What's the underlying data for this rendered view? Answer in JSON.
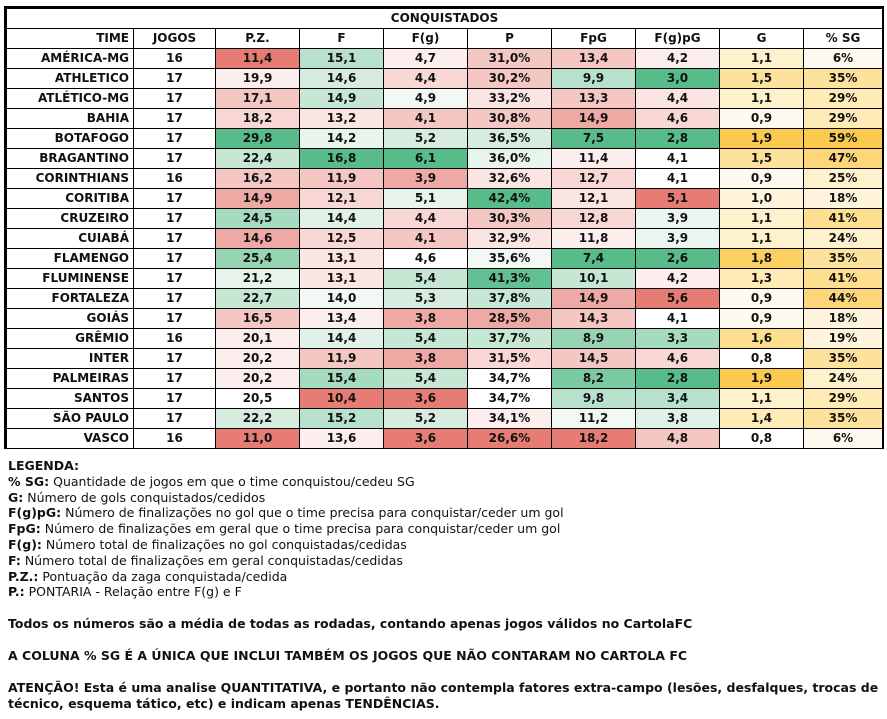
{
  "table": {
    "title": "CONQUISTADOS",
    "headers": [
      "TIME",
      "JOGOS",
      "P.Z.",
      "F",
      "F(g)",
      "P",
      "FpG",
      "F(g)pG",
      "G",
      "% SG"
    ],
    "rows": [
      {
        "cells": [
          "AMÉRICA-MG",
          "16",
          "11,4",
          "15,1",
          "4,7",
          "31,0%",
          "13,4",
          "4,2",
          "1,1",
          "6%"
        ],
        "colors": [
          "#fff",
          "#fff",
          "#e67c73",
          "#b7e1cd",
          "#fdeeee",
          "#f4c7c3",
          "#f4c7c3",
          "#fdeeee",
          "#fef2cc",
          "#fffaf0"
        ]
      },
      {
        "cells": [
          "ATHLETICO",
          "17",
          "19,9",
          "14,6",
          "4,4",
          "30,2%",
          "9,9",
          "3,0",
          "1,5",
          "35%"
        ],
        "colors": [
          "#fff",
          "#fff",
          "#fdeeee",
          "#d6ecdf",
          "#f8d7d5",
          "#f4c7c3",
          "#b7e1cd",
          "#57bb8a",
          "#fde29b",
          "#fde29b"
        ]
      },
      {
        "cells": [
          "ATLÉTICO-MG",
          "17",
          "17,1",
          "14,9",
          "4,9",
          "33,2%",
          "13,3",
          "4,4",
          "1,1",
          "29%"
        ],
        "colors": [
          "#fff",
          "#fff",
          "#f4c7c3",
          "#c6e7d4",
          "#f2f9f5",
          "#fbe5e3",
          "#f4c7c3",
          "#fbe5e3",
          "#fef2cc",
          "#feebb5"
        ]
      },
      {
        "cells": [
          "BAHIA",
          "17",
          "18,2",
          "13,2",
          "4,1",
          "30,8%",
          "14,9",
          "4,6",
          "0,9",
          "29%"
        ],
        "colors": [
          "#fff",
          "#fff",
          "#f8d7d5",
          "#fbe5e3",
          "#f4c7c3",
          "#f4c7c3",
          "#eea9a4",
          "#f8d7d5",
          "#fffaf0",
          "#feebb5"
        ]
      },
      {
        "cells": [
          "BOTAFOGO",
          "17",
          "29,8",
          "14,2",
          "5,2",
          "36,5%",
          "7,5",
          "2,8",
          "1,9",
          "59%"
        ],
        "colors": [
          "#fff",
          "#fff",
          "#57bb8a",
          "#e8f5ed",
          "#d6ecdf",
          "#d6ecdf",
          "#57bb8a",
          "#57bb8a",
          "#fbc94e",
          "#fbc94e"
        ]
      },
      {
        "cells": [
          "BRAGANTINO",
          "17",
          "22,4",
          "16,8",
          "6,1",
          "36,0%",
          "11,4",
          "4,1",
          "1,5",
          "47%"
        ],
        "colors": [
          "#fff",
          "#fff",
          "#c6e7d4",
          "#57bb8a",
          "#57bb8a",
          "#e8f5ed",
          "#fdeeee",
          "#fff",
          "#fde29b",
          "#fdd67a"
        ]
      },
      {
        "cells": [
          "CORINTHIANS",
          "16",
          "16,2",
          "11,9",
          "3,9",
          "32,6%",
          "12,7",
          "4,1",
          "0,9",
          "25%"
        ],
        "colors": [
          "#fff",
          "#fff",
          "#f4c7c3",
          "#f4c7c3",
          "#eea9a4",
          "#fbe5e3",
          "#f8d7d5",
          "#fff",
          "#fffaf0",
          "#fef2cc"
        ]
      },
      {
        "cells": [
          "CORITIBA",
          "17",
          "14,9",
          "12,1",
          "5,1",
          "42,4%",
          "12,1",
          "5,1",
          "1,0",
          "18%"
        ],
        "colors": [
          "#fff",
          "#fff",
          "#eea9a4",
          "#f8d7d5",
          "#e8f5ed",
          "#57bb8a",
          "#fbe5e3",
          "#e67c73",
          "#fff5dc",
          "#fff5dc"
        ]
      },
      {
        "cells": [
          "CRUZEIRO",
          "17",
          "24,5",
          "14,4",
          "4,4",
          "30,3%",
          "12,8",
          "3,9",
          "1,1",
          "41%"
        ],
        "colors": [
          "#fff",
          "#fff",
          "#a5dbbf",
          "#e0f1e7",
          "#f8d7d5",
          "#f4c7c3",
          "#f8d7d5",
          "#eaf6ef",
          "#fef2cc",
          "#fddf8f"
        ]
      },
      {
        "cells": [
          "CUIABÁ",
          "17",
          "14,6",
          "12,5",
          "4,1",
          "32,9%",
          "11,8",
          "3,9",
          "1,1",
          "24%"
        ],
        "colors": [
          "#fff",
          "#fff",
          "#eea9a4",
          "#f8d7d5",
          "#f4c7c3",
          "#fbe5e3",
          "#fdeeee",
          "#eaf6ef",
          "#fef2cc",
          "#fef2cc"
        ]
      },
      {
        "cells": [
          "FLAMENGO",
          "17",
          "25,4",
          "13,1",
          "4,6",
          "35,6%",
          "7,4",
          "2,6",
          "1,8",
          "35%"
        ],
        "colors": [
          "#fff",
          "#fff",
          "#96d4b4",
          "#fbe5e3",
          "#fff",
          "#f2f9f5",
          "#57bb8a",
          "#57bb8a",
          "#fbcf60",
          "#fde29b"
        ]
      },
      {
        "cells": [
          "FLUMINENSE",
          "17",
          "21,2",
          "13,1",
          "5,4",
          "41,3%",
          "10,1",
          "4,2",
          "1,3",
          "41%"
        ],
        "colors": [
          "#fff",
          "#fff",
          "#e8f5ed",
          "#fbe5e3",
          "#c6e7d4",
          "#63c092",
          "#c6e7d4",
          "#fdeeee",
          "#feebb5",
          "#fddf8f"
        ]
      },
      {
        "cells": [
          "FORTALEZA",
          "17",
          "22,7",
          "14,0",
          "5,3",
          "37,8%",
          "14,9",
          "5,6",
          "0,9",
          "44%"
        ],
        "colors": [
          "#fff",
          "#fff",
          "#c6e7d4",
          "#f2f9f5",
          "#d6ecdf",
          "#c6e7d4",
          "#eea9a4",
          "#e67c73",
          "#fffaf0",
          "#fdd67a"
        ]
      },
      {
        "cells": [
          "GOIÁS",
          "17",
          "16,5",
          "13,4",
          "3,8",
          "28,5%",
          "14,3",
          "4,1",
          "0,9",
          "18%"
        ],
        "colors": [
          "#fff",
          "#fff",
          "#f4c7c3",
          "#fdeeee",
          "#eea9a4",
          "#eea9a4",
          "#f4c7c3",
          "#fff",
          "#fffaf0",
          "#fff5dc"
        ]
      },
      {
        "cells": [
          "GRÊMIO",
          "16",
          "20,1",
          "14,4",
          "5,4",
          "37,7%",
          "8,9",
          "3,3",
          "1,6",
          "19%"
        ],
        "colors": [
          "#fff",
          "#fff",
          "#fdeeee",
          "#e0f1e7",
          "#c6e7d4",
          "#c6e7d4",
          "#96d4b4",
          "#a5dbbf",
          "#fddf8f",
          "#fff5dc"
        ]
      },
      {
        "cells": [
          "INTER",
          "17",
          "20,2",
          "11,9",
          "3,8",
          "31,5%",
          "14,5",
          "4,6",
          "0,8",
          "35%"
        ],
        "colors": [
          "#fff",
          "#fff",
          "#fdeeee",
          "#f4c7c3",
          "#eea9a4",
          "#f8d7d5",
          "#f4c7c3",
          "#f8d7d5",
          "#fff",
          "#fde29b"
        ]
      },
      {
        "cells": [
          "PALMEIRAS",
          "17",
          "20,2",
          "15,4",
          "5,4",
          "34,7%",
          "8,2",
          "2,8",
          "1,9",
          "24%"
        ],
        "colors": [
          "#fff",
          "#fff",
          "#fdeeee",
          "#a5dbbf",
          "#c6e7d4",
          "#fff",
          "#7bcaa2",
          "#57bb8a",
          "#fbc94e",
          "#fef2cc"
        ]
      },
      {
        "cells": [
          "SANTOS",
          "17",
          "20,5",
          "10,4",
          "3,6",
          "34,7%",
          "9,8",
          "3,4",
          "1,1",
          "29%"
        ],
        "colors": [
          "#fff",
          "#fff",
          "#fff",
          "#e67c73",
          "#e67c73",
          "#fff",
          "#b7e1cd",
          "#b7e1cd",
          "#fef2cc",
          "#feebb5"
        ]
      },
      {
        "cells": [
          "SÃO PAULO",
          "17",
          "22,2",
          "15,2",
          "5,2",
          "34,1%",
          "11,2",
          "3,8",
          "1,4",
          "35%"
        ],
        "colors": [
          "#fff",
          "#fff",
          "#d6ecdf",
          "#b7e1cd",
          "#d6ecdf",
          "#fdeeee",
          "#f2f9f5",
          "#e0f1e7",
          "#feebb5",
          "#fde29b"
        ]
      },
      {
        "cells": [
          "VASCO",
          "16",
          "11,0",
          "13,6",
          "3,6",
          "26,6%",
          "18,2",
          "4,8",
          "0,8",
          "6%"
        ],
        "colors": [
          "#fff",
          "#fff",
          "#e67c73",
          "#fdeeee",
          "#e67c73",
          "#e67c73",
          "#e67c73",
          "#f4c7c3",
          "#fff",
          "#fffaf0"
        ]
      }
    ]
  },
  "legend": {
    "heading": "LEGENDA:",
    "items": [
      {
        "key": "% SG:",
        "desc": " Quantidade de jogos em que o time conquistou/cedeu SG"
      },
      {
        "key": "G:",
        "desc": " Número de gols conquistados/cedidos"
      },
      {
        "key": "F(g)pG:",
        "desc": " Número de finalizações no gol que o time precisa para conquistar/ceder um gol"
      },
      {
        "key": "FpG:",
        "desc": " Número de finalizações em geral que o time precisa para conquistar/ceder um gol"
      },
      {
        "key": "F(g):",
        "desc": " Número total de finalizações no gol conquistadas/cedidas"
      },
      {
        "key": "F:",
        "desc": " Número total de finalizações em geral conquistadas/cedidas"
      },
      {
        "key": "P.Z.:",
        "desc": " Pontuação da zaga conquistada/cedida"
      },
      {
        "key": "P.:",
        "desc": " PONTARIA - Relação entre F(g) e F"
      }
    ],
    "note1": "Todos os números são a média de todas as rodadas, contando apenas jogos válidos no CartolaFC",
    "note2": "A COLUNA % SG É A ÚNICA QUE INCLUI TAMBÉM OS JOGOS QUE NÃO CONTARAM NO CARTOLA FC",
    "note3": "ATENÇÃO! Esta é uma analise QUANTITATIVA, e portanto não contempla fatores extra-campo (lesões, desfalques, trocas de técnico, esquema tático, etc) e indicam apenas TENDÊNCIAS."
  }
}
